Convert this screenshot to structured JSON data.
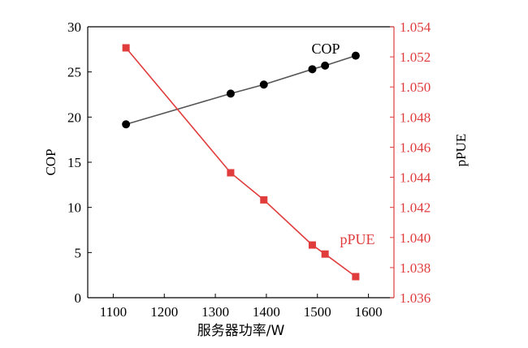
{
  "colors": {
    "cop": "#000000",
    "cop_line": "#555555",
    "ppue": "#e03c3c"
  },
  "chart_data": {
    "type": "line",
    "xlabel": "服务器功率/W",
    "ylabel_left": "COP",
    "ylabel_right": "pPUE",
    "x_ticks": [
      1100,
      1200,
      1300,
      1400,
      1500,
      1600
    ],
    "xlim": [
      1050,
      1650
    ],
    "y_left": {
      "lim": [
        0,
        30
      ],
      "ticks": [
        0,
        5,
        10,
        15,
        20,
        25,
        30
      ]
    },
    "y_right": {
      "lim": [
        1.036,
        1.054
      ],
      "ticks": [
        "1.036",
        "1.038",
        "1.040",
        "1.042",
        "1.044",
        "1.046",
        "1.048",
        "1.050",
        "1.052",
        "1.054"
      ]
    },
    "grid": false,
    "series": [
      {
        "name": "COP",
        "axis": "left",
        "marker": "circle",
        "x": [
          1125,
          1330,
          1395,
          1490,
          1515,
          1575
        ],
        "values": [
          19.2,
          22.6,
          23.6,
          25.3,
          25.7,
          26.8
        ]
      },
      {
        "name": "pPUE",
        "axis": "right",
        "marker": "square",
        "x": [
          1125,
          1330,
          1395,
          1490,
          1515,
          1575
        ],
        "values": [
          1.0526,
          1.0443,
          1.0425,
          1.0395,
          1.0389,
          1.0374
        ]
      }
    ]
  }
}
